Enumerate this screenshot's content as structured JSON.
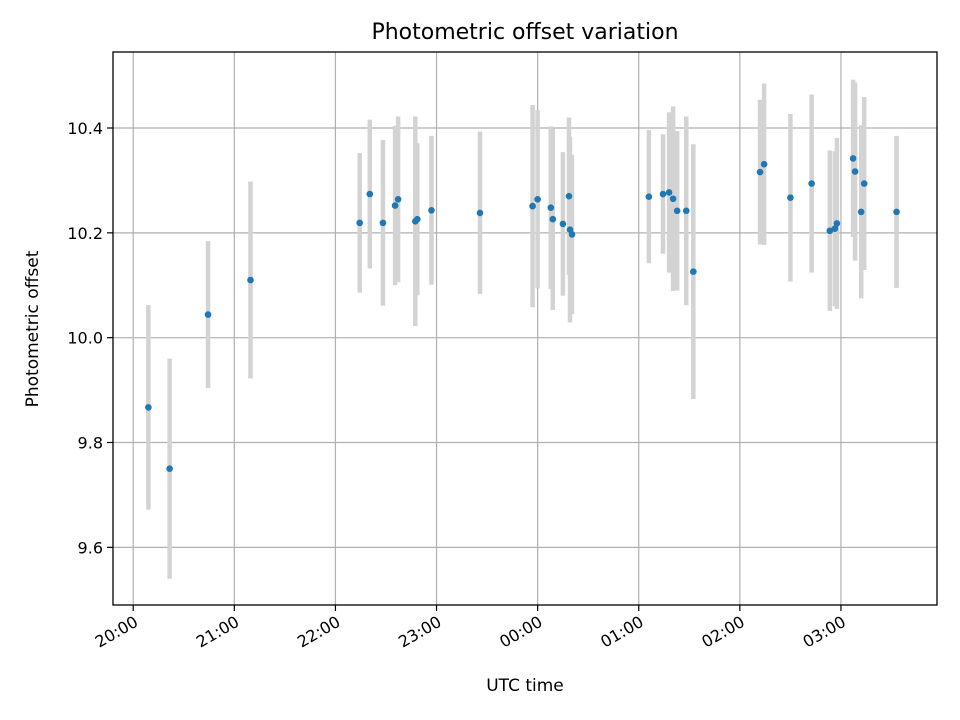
{
  "chart_data": {
    "type": "scatter",
    "title": "Photometric offset variation",
    "xlabel": "UTC time",
    "ylabel": "Photometric offset",
    "x_unit": "UTC hours (values >= 24 are after midnight)",
    "xlim": [
      19.8,
      27.95
    ],
    "ylim": [
      9.49,
      10.545
    ],
    "grid": true,
    "x_ticks": [
      {
        "value": 20,
        "label": "20:00"
      },
      {
        "value": 21,
        "label": "21:00"
      },
      {
        "value": 22,
        "label": "22:00"
      },
      {
        "value": 23,
        "label": "23:00"
      },
      {
        "value": 24,
        "label": "00:00"
      },
      {
        "value": 25,
        "label": "01:00"
      },
      {
        "value": 26,
        "label": "02:00"
      },
      {
        "value": 27,
        "label": "03:00"
      }
    ],
    "y_ticks": [
      {
        "value": 9.6,
        "label": "9.6"
      },
      {
        "value": 9.8,
        "label": "9.8"
      },
      {
        "value": 10.0,
        "label": "10.0"
      },
      {
        "value": 10.2,
        "label": "10.2"
      },
      {
        "value": 10.4,
        "label": "10.4"
      }
    ],
    "colors": {
      "point": "#1f77b4",
      "errorbar": "#d3d3d3"
    },
    "points": [
      {
        "x": 20.15,
        "y": 9.867,
        "err": 0.195
      },
      {
        "x": 20.36,
        "y": 9.75,
        "err": 0.21
      },
      {
        "x": 20.74,
        "y": 10.044,
        "err": 0.14
      },
      {
        "x": 21.16,
        "y": 10.11,
        "err": 0.188
      },
      {
        "x": 22.24,
        "y": 10.219,
        "err": 0.133
      },
      {
        "x": 22.34,
        "y": 10.274,
        "err": 0.142
      },
      {
        "x": 22.47,
        "y": 10.219,
        "err": 0.158
      },
      {
        "x": 22.59,
        "y": 10.252,
        "err": 0.152
      },
      {
        "x": 22.62,
        "y": 10.264,
        "err": 0.158
      },
      {
        "x": 22.79,
        "y": 10.222,
        "err": 0.2
      },
      {
        "x": 22.81,
        "y": 10.226,
        "err": 0.145
      },
      {
        "x": 22.95,
        "y": 10.243,
        "err": 0.142
      },
      {
        "x": 23.43,
        "y": 10.238,
        "err": 0.155
      },
      {
        "x": 23.95,
        "y": 10.251,
        "err": 0.193
      },
      {
        "x": 24.0,
        "y": 10.264,
        "err": 0.17
      },
      {
        "x": 24.13,
        "y": 10.248,
        "err": 0.155
      },
      {
        "x": 24.15,
        "y": 10.226,
        "err": 0.173
      },
      {
        "x": 24.25,
        "y": 10.217,
        "err": 0.137
      },
      {
        "x": 24.31,
        "y": 10.27,
        "err": 0.15
      },
      {
        "x": 24.32,
        "y": 10.206,
        "err": 0.177
      },
      {
        "x": 24.34,
        "y": 10.197,
        "err": 0.152
      },
      {
        "x": 25.1,
        "y": 10.269,
        "err": 0.127
      },
      {
        "x": 25.24,
        "y": 10.274,
        "err": 0.114
      },
      {
        "x": 25.3,
        "y": 10.277,
        "err": 0.153
      },
      {
        "x": 25.34,
        "y": 10.265,
        "err": 0.176
      },
      {
        "x": 25.38,
        "y": 10.242,
        "err": 0.152
      },
      {
        "x": 25.47,
        "y": 10.242,
        "err": 0.18
      },
      {
        "x": 25.54,
        "y": 10.126,
        "err": 0.243
      },
      {
        "x": 26.2,
        "y": 10.316,
        "err": 0.138
      },
      {
        "x": 26.24,
        "y": 10.331,
        "err": 0.154
      },
      {
        "x": 26.5,
        "y": 10.267,
        "err": 0.16
      },
      {
        "x": 26.71,
        "y": 10.294,
        "err": 0.17
      },
      {
        "x": 26.89,
        "y": 10.204,
        "err": 0.153
      },
      {
        "x": 26.94,
        "y": 10.208,
        "err": 0.148
      },
      {
        "x": 26.96,
        "y": 10.218,
        "err": 0.163
      },
      {
        "x": 27.12,
        "y": 10.342,
        "err": 0.15
      },
      {
        "x": 27.14,
        "y": 10.317,
        "err": 0.17
      },
      {
        "x": 27.2,
        "y": 10.24,
        "err": 0.165
      },
      {
        "x": 27.23,
        "y": 10.294,
        "err": 0.165
      },
      {
        "x": 27.55,
        "y": 10.24,
        "err": 0.145
      }
    ]
  }
}
